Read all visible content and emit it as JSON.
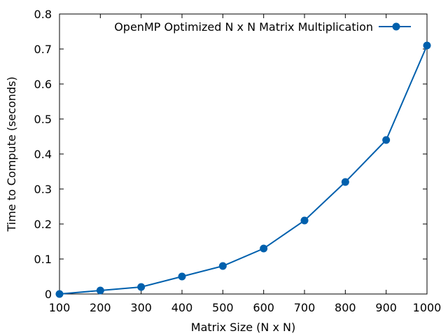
{
  "chart_data": {
    "type": "line",
    "title": "",
    "xlabel": "Matrix Size (N x N)",
    "ylabel": "Time to Compute (seconds)",
    "xlim": [
      100,
      1000
    ],
    "ylim": [
      0,
      0.8
    ],
    "x_ticks": [
      "100",
      "200",
      "300",
      "400",
      "500",
      "600",
      "700",
      "800",
      "900",
      "1000"
    ],
    "y_ticks": [
      "0",
      "0.1",
      "0.2",
      "0.3",
      "0.4",
      "0.5",
      "0.6",
      "0.7",
      "0.8"
    ],
    "grid": false,
    "legend_position": "top-right",
    "series": [
      {
        "name": "OpenMP Optimized N x N Matrix Multiplication",
        "color": "#0060ad",
        "x": [
          100,
          200,
          300,
          400,
          500,
          600,
          700,
          800,
          900,
          1000
        ],
        "y": [
          0.0,
          0.01,
          0.02,
          0.05,
          0.08,
          0.13,
          0.21,
          0.32,
          0.44,
          0.71
        ]
      }
    ]
  }
}
